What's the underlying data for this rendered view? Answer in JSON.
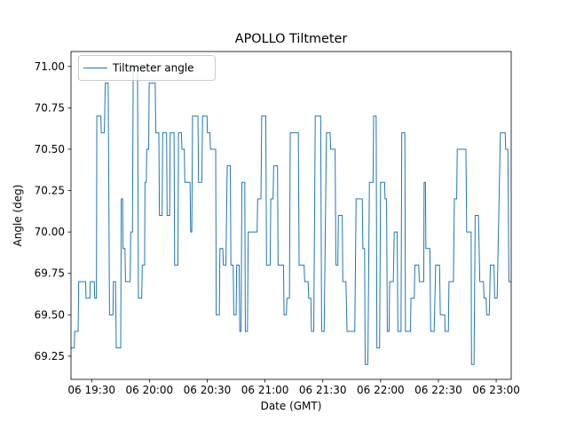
{
  "figure": {
    "background": "#ffffff",
    "axes_edge_color": "#000000",
    "line_color": "#1f77b4"
  },
  "chart_data": {
    "type": "line",
    "title": "APOLLO Tiltmeter",
    "xlabel": "Date (GMT)",
    "ylabel": "Angle (deg)",
    "legend": {
      "entries": [
        "Tiltmeter angle"
      ],
      "position": "upper left",
      "line_color": "#1f77b4"
    },
    "grid": false,
    "x_unit": "minutes after 06 19:00 GMT",
    "xlim": [
      19.3,
      247.8
    ],
    "ylim": [
      69.11,
      71.09
    ],
    "x_ticks": [
      {
        "t": 30,
        "label": "06 19:30"
      },
      {
        "t": 60,
        "label": "06 20:00"
      },
      {
        "t": 90,
        "label": "06 20:30"
      },
      {
        "t": 120,
        "label": "06 21:00"
      },
      {
        "t": 150,
        "label": "06 21:30"
      },
      {
        "t": 180,
        "label": "06 22:00"
      },
      {
        "t": 210,
        "label": "06 22:30"
      },
      {
        "t": 240,
        "label": "06 23:00"
      }
    ],
    "y_ticks": [
      {
        "v": 69.25,
        "label": "69.25"
      },
      {
        "v": 69.5,
        "label": "69.50"
      },
      {
        "v": 69.75,
        "label": "69.75"
      },
      {
        "v": 70.0,
        "label": "70.00"
      },
      {
        "v": 70.25,
        "label": "70.25"
      },
      {
        "v": 70.5,
        "label": "70.50"
      },
      {
        "v": 70.75,
        "label": "70.75"
      },
      {
        "v": 71.0,
        "label": "71.00"
      }
    ],
    "series_name": "Tiltmeter angle",
    "segments_format": "[t_start_min, t_end_min, angle_deg] plateaus joined in order",
    "segments": [
      [
        19.3,
        21.0,
        69.3
      ],
      [
        21.2,
        23.0,
        69.4
      ],
      [
        23.3,
        26.9,
        69.7
      ],
      [
        27.1,
        29.1,
        69.6
      ],
      [
        29.3,
        31.4,
        69.7
      ],
      [
        31.6,
        32.5,
        69.6
      ],
      [
        32.7,
        34.8,
        70.7
      ],
      [
        35.0,
        36.6,
        70.6
      ],
      [
        37.1,
        38.6,
        70.9
      ],
      [
        39.3,
        41.1,
        69.5
      ],
      [
        41.3,
        42.4,
        69.7
      ],
      [
        42.8,
        45.1,
        69.3
      ],
      [
        45.4,
        46.1,
        70.2
      ],
      [
        46.3,
        47.3,
        69.9
      ],
      [
        47.6,
        50.0,
        69.7
      ],
      [
        50.3,
        51.2,
        70.0
      ],
      [
        51.6,
        53.8,
        71.0
      ],
      [
        54.3,
        56.0,
        69.6
      ],
      [
        56.3,
        57.5,
        69.8
      ],
      [
        57.7,
        58.4,
        70.3
      ],
      [
        58.6,
        59.6,
        70.5
      ],
      [
        59.9,
        63.0,
        70.9
      ],
      [
        63.3,
        64.9,
        70.6
      ],
      [
        65.2,
        66.6,
        70.1
      ],
      [
        66.9,
        68.9,
        70.6
      ],
      [
        69.2,
        70.5,
        70.1
      ],
      [
        70.8,
        72.8,
        70.6
      ],
      [
        73.1,
        74.8,
        69.8
      ],
      [
        75.1,
        76.6,
        70.6
      ],
      [
        76.9,
        78.1,
        70.5
      ],
      [
        78.4,
        81.1,
        70.3
      ],
      [
        81.4,
        82.0,
        70.0
      ],
      [
        82.4,
        85.2,
        70.7
      ],
      [
        85.5,
        87.2,
        70.3
      ],
      [
        87.6,
        89.9,
        70.7
      ],
      [
        90.1,
        91.4,
        70.6
      ],
      [
        91.7,
        94.4,
        70.5
      ],
      [
        94.7,
        96.3,
        69.5
      ],
      [
        96.6,
        98.1,
        69.9
      ],
      [
        98.4,
        99.7,
        69.8
      ],
      [
        100.4,
        102.0,
        70.4
      ],
      [
        102.3,
        103.5,
        69.8
      ],
      [
        103.8,
        105.0,
        69.5
      ],
      [
        105.3,
        106.6,
        69.8
      ],
      [
        106.9,
        107.6,
        69.4
      ],
      [
        108.0,
        109.5,
        70.3
      ],
      [
        109.8,
        110.9,
        69.4
      ],
      [
        111.3,
        115.9,
        70.0
      ],
      [
        116.2,
        117.9,
        70.2
      ],
      [
        118.3,
        120.4,
        70.7
      ],
      [
        120.8,
        122.7,
        69.8
      ],
      [
        123.0,
        124.2,
        70.2
      ],
      [
        124.5,
        126.5,
        70.4
      ],
      [
        126.8,
        129.6,
        69.8
      ],
      [
        129.9,
        131.1,
        69.5
      ],
      [
        131.4,
        132.7,
        69.6
      ],
      [
        133.1,
        137.3,
        70.6
      ],
      [
        137.7,
        140.3,
        69.8
      ],
      [
        140.6,
        142.4,
        69.7
      ],
      [
        142.7,
        143.8,
        69.6
      ],
      [
        144.1,
        145.3,
        69.4
      ],
      [
        146.1,
        148.9,
        70.7
      ],
      [
        149.4,
        150.7,
        69.4
      ],
      [
        151.9,
        153.8,
        70.6
      ],
      [
        154.1,
        156.4,
        70.5
      ],
      [
        156.8,
        157.8,
        69.8
      ],
      [
        158.1,
        160.1,
        70.1
      ],
      [
        160.4,
        162.0,
        69.7
      ],
      [
        162.6,
        166.6,
        69.4
      ],
      [
        167.3,
        170.5,
        70.2
      ],
      [
        170.8,
        171.7,
        69.9
      ],
      [
        172.0,
        173.4,
        69.2
      ],
      [
        174.2,
        176.1,
        70.3
      ],
      [
        176.4,
        177.7,
        70.7
      ],
      [
        178.1,
        179.5,
        69.3
      ],
      [
        180.0,
        182.1,
        70.3
      ],
      [
        182.3,
        183.1,
        70.2
      ],
      [
        183.5,
        184.4,
        69.4
      ],
      [
        184.7,
        186.6,
        69.7
      ],
      [
        187.1,
        188.6,
        70.0
      ],
      [
        189.0,
        190.6,
        69.4
      ],
      [
        191.0,
        192.6,
        70.6
      ],
      [
        192.9,
        195.5,
        69.4
      ],
      [
        195.8,
        197.5,
        69.6
      ],
      [
        197.8,
        199.8,
        69.8
      ],
      [
        200.1,
        202.4,
        69.7
      ],
      [
        202.6,
        203.3,
        70.3
      ],
      [
        203.5,
        205.6,
        69.9
      ],
      [
        206.0,
        207.8,
        69.4
      ],
      [
        208.6,
        210.6,
        69.8
      ],
      [
        211.0,
        213.3,
        69.5
      ],
      [
        213.5,
        215.2,
        69.4
      ],
      [
        215.5,
        217.8,
        69.7
      ],
      [
        218.3,
        219.5,
        70.2
      ],
      [
        219.8,
        224.3,
        70.5
      ],
      [
        224.7,
        227.0,
        70.0
      ],
      [
        227.2,
        228.5,
        69.2
      ],
      [
        229.1,
        230.8,
        70.1
      ],
      [
        231.5,
        233.4,
        69.7
      ],
      [
        233.7,
        234.8,
        69.6
      ],
      [
        235.1,
        236.4,
        69.5
      ],
      [
        237.0,
        238.9,
        69.8
      ],
      [
        239.2,
        240.5,
        69.6
      ],
      [
        242.2,
        244.7,
        70.6
      ],
      [
        244.9,
        246.1,
        70.5
      ],
      [
        246.6,
        247.8,
        69.7
      ]
    ]
  }
}
